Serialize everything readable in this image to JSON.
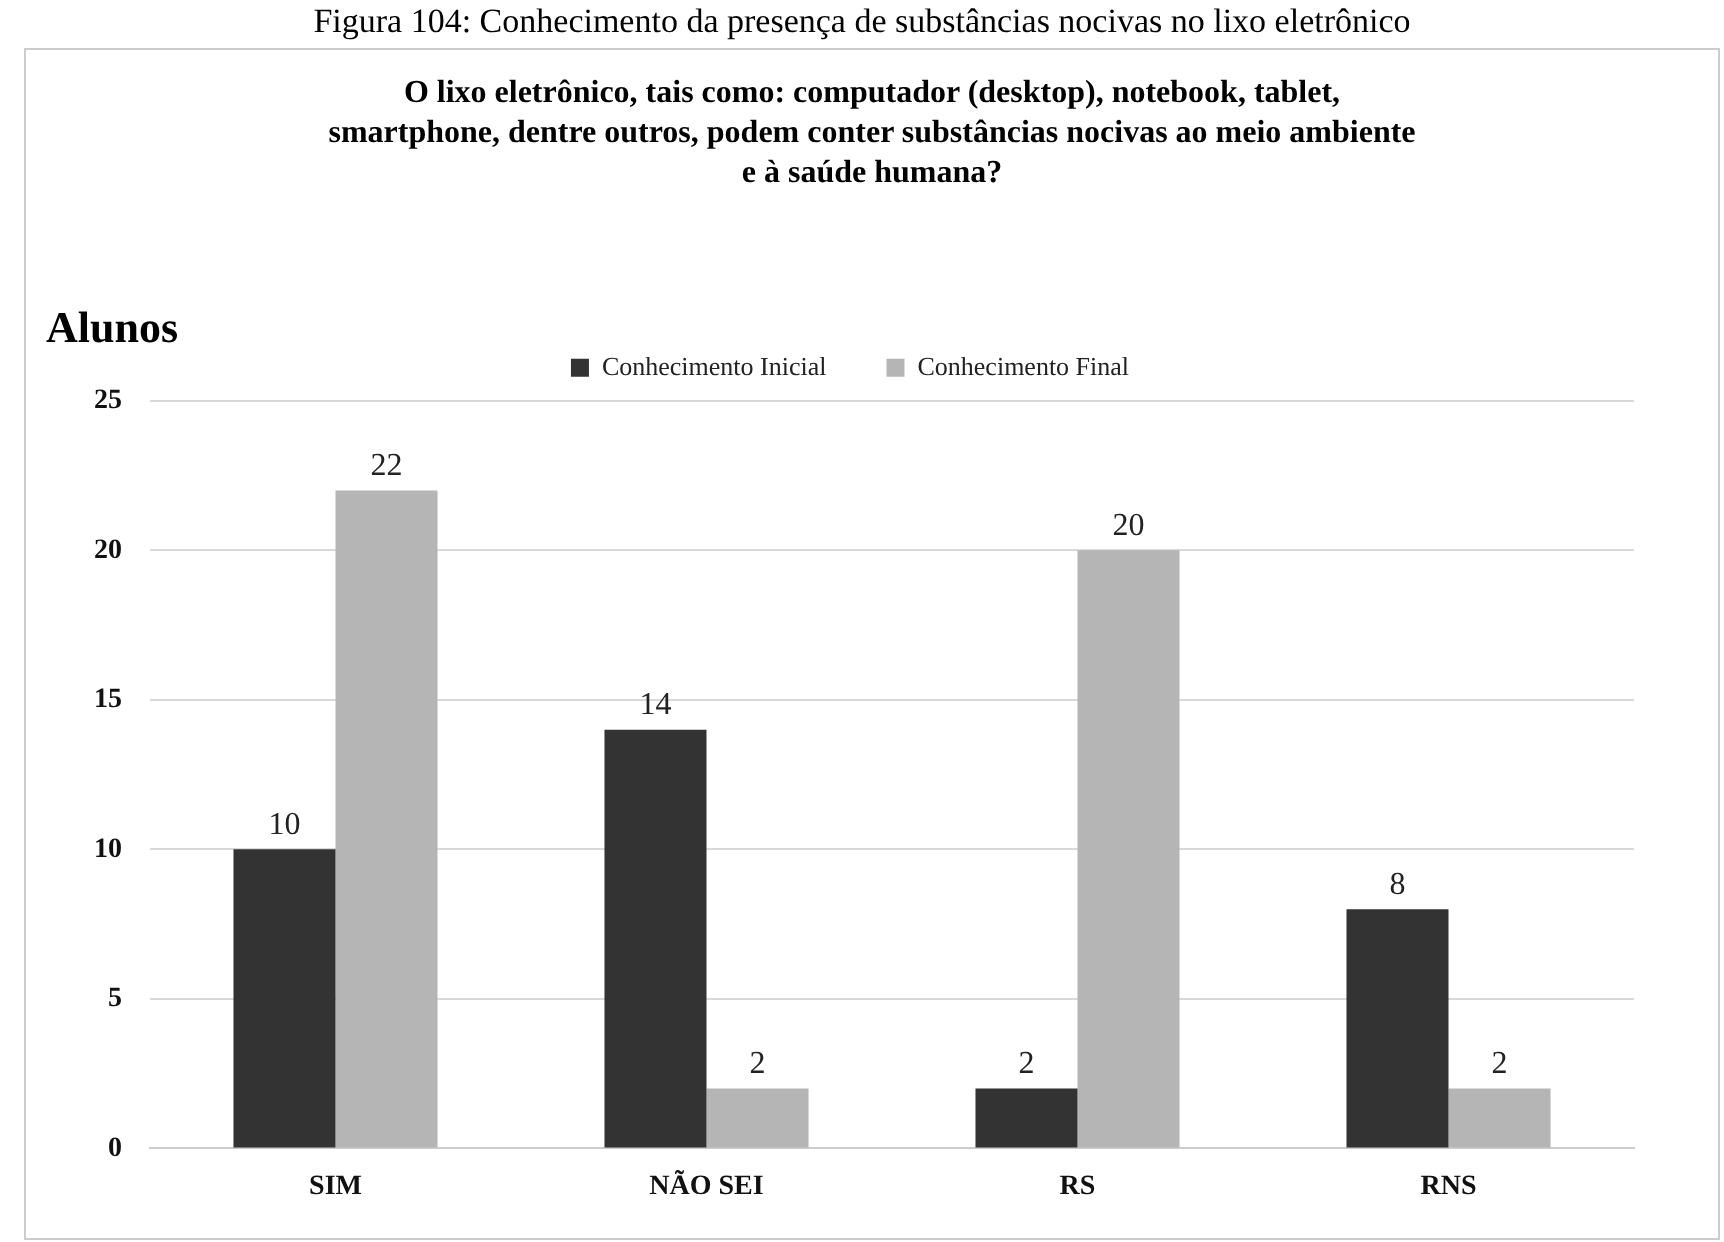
{
  "chart_data": {
    "type": "bar",
    "title": "O lixo eletrônico, tais como: computador (desktop), notebook, tablet, smartphone, dentre outros, podem conter substâncias nocivas ao meio ambiente e à saúde humana?",
    "ylabel": "Alunos",
    "annotations": [
      "Figura 104: Conhecimento da presença de substâncias nocivas no lixo eletrônico"
    ],
    "categories": [
      "SIM",
      "NÃO SEI",
      "RS",
      "RNS"
    ],
    "series": [
      {
        "name": "Conhecimento Inicial",
        "color": "#333333",
        "values": [
          10,
          14,
          2,
          8
        ]
      },
      {
        "name": "Conhecimento Final",
        "color": "#b5b5b5",
        "values": [
          22,
          2,
          20,
          2
        ]
      }
    ],
    "ylim": [
      0,
      25
    ],
    "yticks": [
      0,
      5,
      10,
      15,
      20,
      25
    ],
    "grid": "y",
    "legend": "top",
    "data_labels": true
  }
}
